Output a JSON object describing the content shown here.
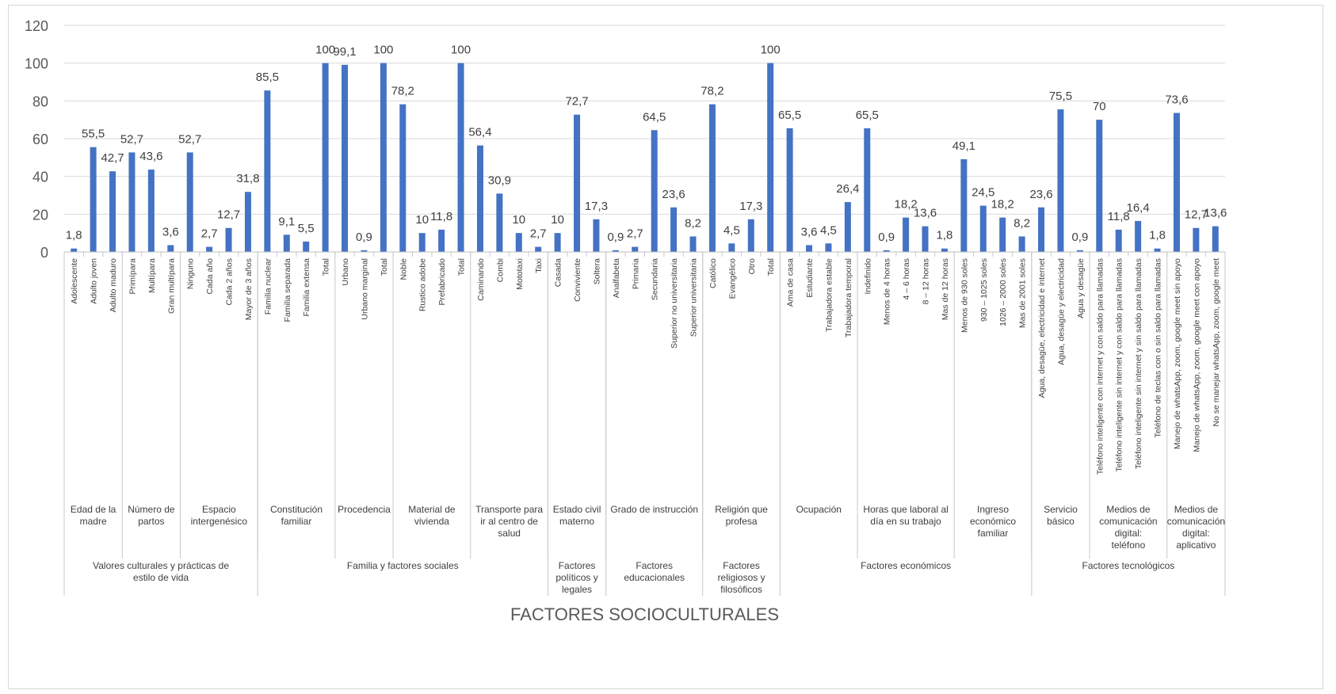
{
  "chart_data": {
    "type": "bar",
    "xlabel": "FACTORES SOCIOCULTURALES",
    "ylim": [
      0,
      120
    ],
    "yticks": [
      0,
      20,
      40,
      60,
      80,
      100,
      120
    ],
    "grid": true,
    "legend": "none",
    "bar_color": "#4472c4",
    "categories": [
      "Adolescente",
      "Adulto joven",
      "Adulto maduro",
      "Primípara",
      "Multípara",
      "Gran multípara",
      "Ninguno",
      "Cada año",
      "Cada 2 años",
      "Mayor de 3 años",
      "Familia nuclear",
      "Familia separada",
      "Familia extensa",
      "Total",
      "Urbano",
      "Urbano marginal",
      "Total",
      "Noble",
      "Rustico adobe",
      "Prefabricado",
      "Total",
      "Caminando",
      "Combi",
      "Mototaxi",
      "Taxi",
      "Casada",
      "Conviviente",
      "Soltera",
      "Analfabeta",
      "Primaria",
      "Secundaria",
      "Superior no universitaria",
      "Superior universitaria",
      "Católico",
      "Evangélico",
      "Otro",
      "Total",
      "Ama de casa",
      "Estudiante",
      "Trabajadora estable",
      "Trabajadora temporal",
      "Indefinido",
      "Menos de 4 horas",
      "4 – 6 horas",
      "8 – 12 horas",
      "Mas de 12 horas",
      "Menos de 930 soles",
      "930 – 1025 soles",
      "1026 – 2000 soles",
      "Mas de 2001 soles",
      "Agua, desagüe, electricidad e internet",
      "Agua, desagüe y electricidad",
      "Agua y desagüe",
      "Teléfono inteligente con internet y con saldo para llamadas",
      "Teléfono inteligente sin internet y con saldo para llamadas",
      "Teléfono inteligente sin internet y sin saldo para llamadas",
      "Teléfono de teclas con o sin saldo para llamadas",
      "Manejo de whatsApp, zoom, google meet sin apoyo",
      "Manejo de whatsApp, zoom, google meet con apoyo",
      "No se manejar whatsApp, zoom, google meet"
    ],
    "values": [
      1.8,
      55.5,
      42.7,
      52.7,
      43.6,
      3.6,
      52.7,
      2.7,
      12.7,
      31.8,
      85.5,
      9.1,
      5.5,
      100,
      99.1,
      0.9,
      100,
      78.2,
      10,
      11.8,
      100,
      56.4,
      30.9,
      10,
      2.7,
      10,
      72.7,
      17.3,
      0.9,
      2.7,
      64.5,
      23.6,
      8.2,
      78.2,
      4.5,
      17.3,
      100,
      65.5,
      3.6,
      4.5,
      26.4,
      65.5,
      0.9,
      18.2,
      13.6,
      1.8,
      49.1,
      24.5,
      18.2,
      8.2,
      23.6,
      75.5,
      0.9,
      70,
      11.8,
      16.4,
      1.8,
      73.6,
      12.7,
      13.6
    ],
    "data_labels": [
      "1,8",
      "55,5",
      "42,7",
      "52,7",
      "43,6",
      "3,6",
      "52,7",
      "2,7",
      "12,7",
      "31,8",
      "85,5",
      "9,1",
      "5,5",
      "100",
      "99,1",
      "0,9",
      "100",
      "78,2",
      "10",
      "11,8",
      "100",
      "56,4",
      "30,9",
      "10",
      "2,7",
      "10",
      "72,7",
      "17,3",
      "0,9",
      "2,7",
      "64,5",
      "23,6",
      "8,2",
      "78,2",
      "4,5",
      "17,3",
      "100",
      "65,5",
      "3,6",
      "4,5",
      "26,4",
      "65,5",
      "0,9",
      "18,2",
      "13,6",
      "1,8",
      "49,1",
      "24,5",
      "18,2",
      "8,2",
      "23,6",
      "75,5",
      "0,9",
      "70",
      "11,8",
      "16,4",
      "1,8",
      "73,6",
      "12,7",
      "13,6"
    ],
    "groups": [
      {
        "label": "Edad de la madre",
        "start": 0,
        "count": 3
      },
      {
        "label": "Número de partos",
        "start": 3,
        "count": 3
      },
      {
        "label": "Espacio intergenésico",
        "start": 6,
        "count": 4
      },
      {
        "label": "Constitución familiar",
        "start": 10,
        "count": 4
      },
      {
        "label": "Procedencia",
        "start": 14,
        "count": 3
      },
      {
        "label": "Material de vivienda",
        "start": 17,
        "count": 4
      },
      {
        "label": "Transporte para ir al centro de salud",
        "start": 21,
        "count": 4
      },
      {
        "label": "Estado civil materno",
        "start": 25,
        "count": 3
      },
      {
        "label": "Grado de instrucción",
        "start": 28,
        "count": 5
      },
      {
        "label": "Religión que profesa",
        "start": 33,
        "count": 4
      },
      {
        "label": "Ocupación",
        "start": 37,
        "count": 4
      },
      {
        "label": "Horas que laboral al día en su trabajo",
        "start": 41,
        "count": 5
      },
      {
        "label": "Ingreso económico familiar",
        "start": 46,
        "count": 4
      },
      {
        "label": "Servicio básico",
        "start": 50,
        "count": 3
      },
      {
        "label": "Medios de comunicación digital: teléfono",
        "start": 53,
        "count": 4
      },
      {
        "label": "Medios de comunicación digital: aplicativo",
        "start": 57,
        "count": 3
      }
    ],
    "super_groups": [
      {
        "label": "Valores culturales y prácticas de estilo de vida",
        "start": 0,
        "count": 10
      },
      {
        "label": "Familia y factores sociales",
        "start": 10,
        "count": 15
      },
      {
        "label": "Factores políticos y legales",
        "start": 25,
        "count": 3
      },
      {
        "label": "Factores educacionales",
        "start": 28,
        "count": 5
      },
      {
        "label": "Factores religiosos y filosóficos",
        "start": 33,
        "count": 4
      },
      {
        "label": "Factores económicos",
        "start": 37,
        "count": 13
      },
      {
        "label": "Factores tecnológicos",
        "start": 50,
        "count": 10
      }
    ]
  }
}
